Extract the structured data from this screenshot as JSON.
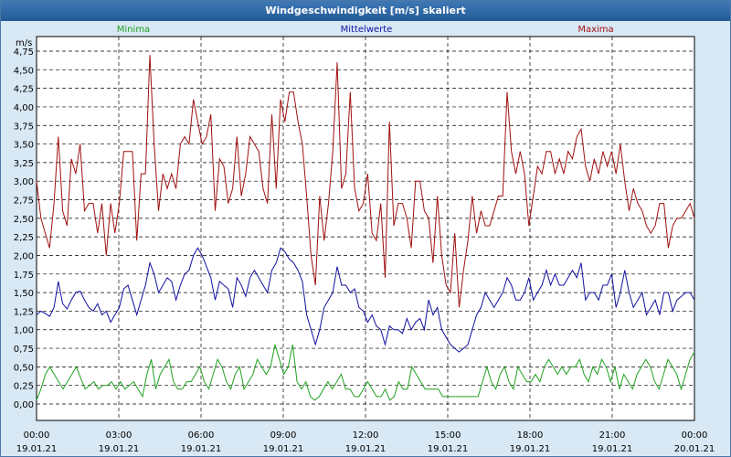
{
  "window": {
    "title": "Windgeschwindigkeit [m/s] skaliert"
  },
  "chart_data": {
    "type": "line",
    "title": "Windgeschwindigkeit [m/s] skaliert",
    "ylabel": "m/s",
    "ylim": [
      0,
      4.75
    ],
    "xlim_hours": [
      0,
      24
    ],
    "grid": true,
    "y_ticks": [
      "0,00",
      "0,25",
      "0,50",
      "0,75",
      "1,00",
      "1,25",
      "1,50",
      "1,75",
      "2,00",
      "2,25",
      "2,50",
      "2,75",
      "3,00",
      "3,25",
      "3,50",
      "3,75",
      "4,00",
      "4,25",
      "4,50",
      "4,75"
    ],
    "x_ticks": [
      {
        "time": "00:00",
        "date": "19.01.21"
      },
      {
        "time": "03:00",
        "date": "19.01.21"
      },
      {
        "time": "06:00",
        "date": "19.01.21"
      },
      {
        "time": "09:00",
        "date": "19.01.21"
      },
      {
        "time": "12:00",
        "date": "19.01.21"
      },
      {
        "time": "15:00",
        "date": "19.01.21"
      },
      {
        "time": "18:00",
        "date": "19.01.21"
      },
      {
        "time": "21:00",
        "date": "19.01.21"
      },
      {
        "time": "00:00",
        "date": "20.01.21"
      }
    ],
    "legend": [
      {
        "name": "Minima",
        "color": "#20a020"
      },
      {
        "name": "Mittelwerte",
        "color": "#1010a0"
      },
      {
        "name": "Maxima",
        "color": "#a01010"
      }
    ],
    "series": [
      {
        "name": "Maxima",
        "color": "#a01010",
        "values": [
          3.0,
          2.5,
          2.3,
          2.1,
          2.7,
          3.6,
          2.6,
          2.4,
          3.3,
          3.1,
          3.5,
          2.6,
          2.7,
          2.7,
          2.3,
          2.7,
          2.0,
          2.7,
          2.3,
          2.7,
          3.4,
          3.4,
          3.4,
          2.2,
          3.1,
          3.1,
          4.7,
          3.5,
          2.6,
          3.1,
          2.9,
          3.1,
          2.9,
          3.5,
          3.6,
          3.5,
          4.1,
          3.8,
          3.5,
          3.6,
          3.9,
          2.6,
          3.3,
          3.2,
          2.7,
          2.9,
          3.6,
          2.8,
          3.1,
          3.6,
          3.5,
          3.4,
          2.9,
          2.7,
          3.9,
          2.9,
          4.1,
          3.8,
          4.2,
          4.2,
          3.8,
          3.5,
          2.8,
          2.0,
          1.6,
          2.8,
          2.2,
          2.7,
          3.4,
          4.6,
          2.9,
          3.1,
          4.2,
          2.9,
          2.6,
          2.7,
          3.1,
          2.3,
          2.2,
          2.7,
          1.7,
          3.8,
          2.4,
          2.7,
          2.7,
          2.5,
          2.1,
          3.0,
          3.0,
          2.6,
          2.5,
          1.9,
          2.8,
          2.0,
          1.6,
          1.5,
          2.3,
          1.3,
          1.8,
          2.2,
          2.8,
          2.3,
          2.6,
          2.4,
          2.4,
          2.6,
          2.8,
          2.8,
          4.2,
          3.4,
          3.1,
          3.4,
          3.1,
          2.4,
          2.8,
          3.2,
          3.1,
          3.4,
          3.4,
          3.1,
          3.3,
          3.1,
          3.4,
          3.3,
          3.6,
          3.7,
          3.2,
          3.0,
          3.3,
          3.1,
          3.4,
          3.2,
          3.4,
          3.1,
          3.5,
          3.0,
          2.6,
          2.9,
          2.7,
          2.6,
          2.4,
          2.3,
          2.4,
          2.7,
          2.7,
          2.1,
          2.4,
          2.5,
          2.5,
          2.6,
          2.7,
          2.5
        ]
      },
      {
        "name": "Mittelwerte",
        "color": "#1010a0",
        "values": [
          1.2,
          1.25,
          1.22,
          1.18,
          1.3,
          1.65,
          1.35,
          1.28,
          1.4,
          1.5,
          1.52,
          1.4,
          1.3,
          1.25,
          1.35,
          1.2,
          1.25,
          1.1,
          1.2,
          1.3,
          1.55,
          1.6,
          1.4,
          1.2,
          1.4,
          1.6,
          1.9,
          1.75,
          1.5,
          1.6,
          1.7,
          1.65,
          1.4,
          1.6,
          1.75,
          1.8,
          2.0,
          2.1,
          2.0,
          1.85,
          1.7,
          1.4,
          1.65,
          1.6,
          1.55,
          1.3,
          1.7,
          1.6,
          1.45,
          1.7,
          1.8,
          1.7,
          1.6,
          1.5,
          1.8,
          1.9,
          2.1,
          2.05,
          1.95,
          1.9,
          1.8,
          1.65,
          1.2,
          1.0,
          0.8,
          1.0,
          1.3,
          1.4,
          1.5,
          1.85,
          1.6,
          1.6,
          1.5,
          1.55,
          1.3,
          1.25,
          1.1,
          1.2,
          1.05,
          1.0,
          0.8,
          1.05,
          1.0,
          1.0,
          0.95,
          1.15,
          1.0,
          1.1,
          1.15,
          1.0,
          1.4,
          1.2,
          1.3,
          1.0,
          0.9,
          0.8,
          0.75,
          0.7,
          0.75,
          0.8,
          1.0,
          1.2,
          1.3,
          1.5,
          1.4,
          1.3,
          1.4,
          1.5,
          1.7,
          1.6,
          1.4,
          1.4,
          1.5,
          1.7,
          1.4,
          1.5,
          1.6,
          1.8,
          1.6,
          1.75,
          1.6,
          1.6,
          1.7,
          1.8,
          1.7,
          1.9,
          1.4,
          1.5,
          1.5,
          1.4,
          1.6,
          1.6,
          1.75,
          1.3,
          1.5,
          1.8,
          1.5,
          1.3,
          1.4,
          1.5,
          1.2,
          1.3,
          1.4,
          1.2,
          1.5,
          1.5,
          1.25,
          1.4,
          1.45,
          1.5,
          1.5,
          1.4
        ]
      },
      {
        "name": "Minima",
        "color": "#20a020",
        "values": [
          0.05,
          0.2,
          0.4,
          0.5,
          0.4,
          0.3,
          0.2,
          0.3,
          0.4,
          0.5,
          0.35,
          0.2,
          0.25,
          0.3,
          0.2,
          0.25,
          0.25,
          0.3,
          0.2,
          0.3,
          0.2,
          0.25,
          0.3,
          0.2,
          0.1,
          0.4,
          0.6,
          0.2,
          0.4,
          0.5,
          0.6,
          0.3,
          0.2,
          0.2,
          0.3,
          0.3,
          0.4,
          0.5,
          0.3,
          0.2,
          0.4,
          0.6,
          0.5,
          0.3,
          0.2,
          0.4,
          0.5,
          0.2,
          0.3,
          0.4,
          0.6,
          0.5,
          0.4,
          0.5,
          0.8,
          0.6,
          0.4,
          0.5,
          0.8,
          0.3,
          0.2,
          0.3,
          0.1,
          0.05,
          0.1,
          0.2,
          0.3,
          0.2,
          0.3,
          0.4,
          0.2,
          0.2,
          0.1,
          0.1,
          0.2,
          0.3,
          0.2,
          0.1,
          0.1,
          0.2,
          0.05,
          0.1,
          0.3,
          0.2,
          0.2,
          0.5,
          0.4,
          0.3,
          0.2,
          0.2,
          0.2,
          0.2,
          0.1,
          0.1,
          0.1,
          0.1,
          0.1,
          0.1,
          0.1,
          0.1,
          0.1,
          0.3,
          0.5,
          0.3,
          0.2,
          0.4,
          0.5,
          0.3,
          0.2,
          0.5,
          0.4,
          0.3,
          0.3,
          0.4,
          0.3,
          0.5,
          0.6,
          0.5,
          0.4,
          0.5,
          0.4,
          0.5,
          0.5,
          0.6,
          0.4,
          0.3,
          0.5,
          0.4,
          0.6,
          0.5,
          0.3,
          0.5,
          0.2,
          0.4,
          0.3,
          0.2,
          0.4,
          0.5,
          0.6,
          0.5,
          0.3,
          0.2,
          0.4,
          0.6,
          0.5,
          0.4,
          0.2,
          0.4,
          0.6,
          0.7
        ]
      }
    ]
  }
}
